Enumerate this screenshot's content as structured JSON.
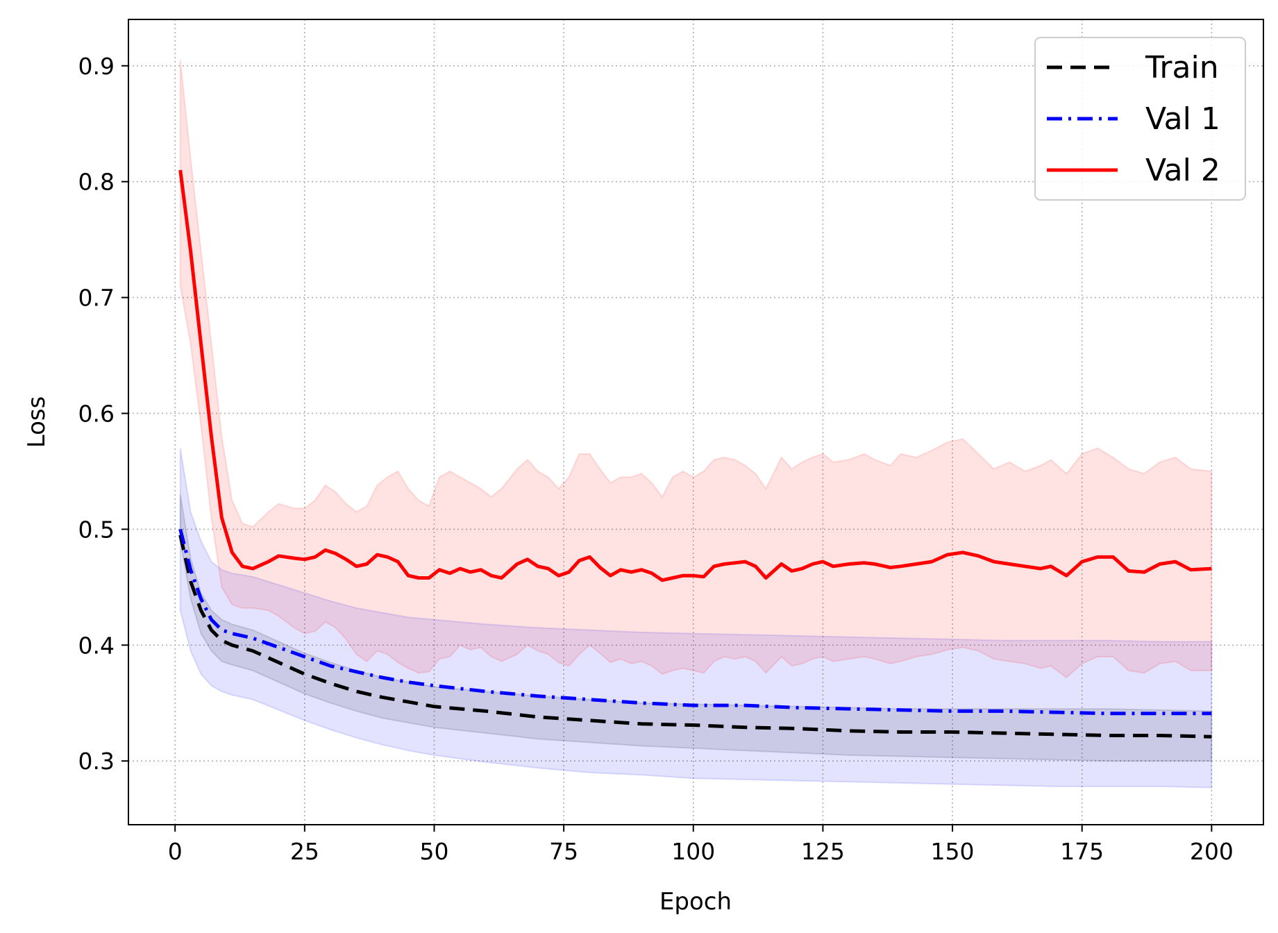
{
  "chart_data": {
    "type": "line",
    "title": "",
    "xlabel": "Epoch",
    "ylabel": "Loss",
    "xlim": [
      -9,
      210
    ],
    "ylim": [
      0.245,
      0.94
    ],
    "x_ticks": [
      0,
      25,
      50,
      75,
      100,
      125,
      150,
      175,
      200
    ],
    "y_ticks": [
      0.3,
      0.4,
      0.5,
      0.6,
      0.7,
      0.8,
      0.9
    ],
    "grid": true,
    "legend_position": "top-right",
    "series": [
      {
        "name": "Train",
        "color": "#000000",
        "style": "dashed",
        "band_color": "#000000",
        "x": [
          1,
          3,
          5,
          7,
          9,
          11,
          15,
          20,
          25,
          30,
          35,
          40,
          45,
          50,
          60,
          70,
          80,
          90,
          100,
          110,
          120,
          130,
          140,
          150,
          160,
          170,
          180,
          190,
          200
        ],
        "mean": [
          0.495,
          0.455,
          0.43,
          0.413,
          0.404,
          0.4,
          0.395,
          0.385,
          0.375,
          0.367,
          0.36,
          0.355,
          0.351,
          0.347,
          0.343,
          0.338,
          0.335,
          0.332,
          0.331,
          0.329,
          0.328,
          0.326,
          0.325,
          0.325,
          0.324,
          0.323,
          0.322,
          0.322,
          0.321
        ],
        "lower": [
          0.49,
          0.44,
          0.41,
          0.395,
          0.386,
          0.383,
          0.378,
          0.368,
          0.358,
          0.35,
          0.343,
          0.337,
          0.333,
          0.329,
          0.324,
          0.319,
          0.316,
          0.313,
          0.311,
          0.309,
          0.307,
          0.305,
          0.304,
          0.303,
          0.302,
          0.301,
          0.3,
          0.3,
          0.3
        ],
        "upper": [
          0.53,
          0.475,
          0.445,
          0.43,
          0.422,
          0.418,
          0.413,
          0.403,
          0.393,
          0.385,
          0.378,
          0.372,
          0.368,
          0.364,
          0.36,
          0.356,
          0.353,
          0.35,
          0.349,
          0.348,
          0.347,
          0.346,
          0.345,
          0.345,
          0.345,
          0.345,
          0.345,
          0.344,
          0.343
        ]
      },
      {
        "name": "Val 1",
        "color": "#0000ff",
        "style": "dashdot",
        "band_color": "#0000ff",
        "x": [
          1,
          3,
          5,
          7,
          9,
          11,
          15,
          20,
          25,
          30,
          35,
          40,
          45,
          50,
          60,
          70,
          80,
          90,
          100,
          110,
          120,
          130,
          140,
          150,
          160,
          170,
          180,
          190,
          200
        ],
        "mean": [
          0.5,
          0.465,
          0.44,
          0.422,
          0.413,
          0.41,
          0.406,
          0.398,
          0.39,
          0.382,
          0.377,
          0.372,
          0.368,
          0.365,
          0.36,
          0.356,
          0.353,
          0.35,
          0.348,
          0.348,
          0.346,
          0.345,
          0.344,
          0.343,
          0.343,
          0.342,
          0.341,
          0.341,
          0.341
        ],
        "lower": [
          0.43,
          0.395,
          0.375,
          0.365,
          0.36,
          0.357,
          0.353,
          0.344,
          0.335,
          0.327,
          0.32,
          0.314,
          0.309,
          0.305,
          0.299,
          0.294,
          0.29,
          0.288,
          0.285,
          0.284,
          0.283,
          0.282,
          0.281,
          0.28,
          0.279,
          0.278,
          0.278,
          0.278,
          0.277
        ],
        "upper": [
          0.57,
          0.515,
          0.49,
          0.472,
          0.465,
          0.462,
          0.459,
          0.452,
          0.445,
          0.438,
          0.432,
          0.428,
          0.424,
          0.422,
          0.418,
          0.415,
          0.413,
          0.411,
          0.41,
          0.409,
          0.408,
          0.407,
          0.406,
          0.405,
          0.404,
          0.404,
          0.404,
          0.403,
          0.403
        ]
      },
      {
        "name": "Val 2",
        "color": "#ff0000",
        "style": "solid",
        "band_color": "#ff0000",
        "x": [
          1,
          3,
          5,
          7,
          9,
          11,
          13,
          15,
          18,
          20,
          23,
          25,
          27,
          29,
          31,
          33,
          35,
          37,
          39,
          41,
          43,
          45,
          47,
          49,
          51,
          53,
          55,
          57,
          59,
          61,
          63,
          66,
          68,
          70,
          72,
          74,
          76,
          78,
          80,
          82,
          84,
          86,
          88,
          90,
          92,
          94,
          96,
          98,
          100,
          102,
          104,
          106,
          108,
          110,
          112,
          114,
          117,
          119,
          121,
          123,
          125,
          127,
          130,
          133,
          135,
          138,
          140,
          143,
          146,
          149,
          152,
          155,
          158,
          161,
          164,
          167,
          169,
          172,
          175,
          178,
          181,
          184,
          187,
          190,
          193,
          196,
          200
        ],
        "mean": [
          0.81,
          0.74,
          0.66,
          0.58,
          0.51,
          0.48,
          0.468,
          0.466,
          0.472,
          0.477,
          0.475,
          0.474,
          0.476,
          0.482,
          0.479,
          0.474,
          0.468,
          0.47,
          0.478,
          0.476,
          0.472,
          0.46,
          0.458,
          0.458,
          0.465,
          0.462,
          0.466,
          0.463,
          0.465,
          0.46,
          0.458,
          0.47,
          0.474,
          0.468,
          0.466,
          0.46,
          0.463,
          0.473,
          0.476,
          0.467,
          0.46,
          0.465,
          0.463,
          0.465,
          0.462,
          0.456,
          0.458,
          0.46,
          0.46,
          0.459,
          0.468,
          0.47,
          0.471,
          0.472,
          0.468,
          0.458,
          0.47,
          0.464,
          0.466,
          0.47,
          0.472,
          0.468,
          0.47,
          0.471,
          0.47,
          0.467,
          0.468,
          0.47,
          0.472,
          0.478,
          0.48,
          0.477,
          0.472,
          0.47,
          0.468,
          0.466,
          0.468,
          0.46,
          0.472,
          0.476,
          0.476,
          0.464,
          0.463,
          0.47,
          0.472,
          0.465,
          0.466
        ],
        "lower": [
          0.71,
          0.66,
          0.59,
          0.51,
          0.45,
          0.435,
          0.432,
          0.432,
          0.43,
          0.425,
          0.415,
          0.41,
          0.412,
          0.42,
          0.415,
          0.405,
          0.392,
          0.386,
          0.395,
          0.392,
          0.385,
          0.38,
          0.376,
          0.377,
          0.388,
          0.39,
          0.4,
          0.396,
          0.398,
          0.39,
          0.386,
          0.392,
          0.4,
          0.395,
          0.392,
          0.385,
          0.382,
          0.392,
          0.4,
          0.393,
          0.385,
          0.388,
          0.384,
          0.386,
          0.382,
          0.375,
          0.378,
          0.38,
          0.378,
          0.376,
          0.386,
          0.39,
          0.388,
          0.39,
          0.386,
          0.376,
          0.39,
          0.382,
          0.384,
          0.388,
          0.39,
          0.386,
          0.388,
          0.39,
          0.388,
          0.384,
          0.386,
          0.39,
          0.392,
          0.396,
          0.398,
          0.395,
          0.388,
          0.386,
          0.384,
          0.38,
          0.382,
          0.372,
          0.384,
          0.39,
          0.39,
          0.378,
          0.376,
          0.384,
          0.386,
          0.378,
          0.378
        ],
        "upper": [
          0.905,
          0.82,
          0.74,
          0.66,
          0.58,
          0.525,
          0.505,
          0.502,
          0.515,
          0.522,
          0.518,
          0.518,
          0.525,
          0.538,
          0.532,
          0.522,
          0.515,
          0.52,
          0.538,
          0.545,
          0.55,
          0.535,
          0.525,
          0.52,
          0.545,
          0.55,
          0.545,
          0.54,
          0.535,
          0.528,
          0.535,
          0.552,
          0.56,
          0.55,
          0.545,
          0.535,
          0.545,
          0.565,
          0.565,
          0.552,
          0.54,
          0.545,
          0.545,
          0.548,
          0.54,
          0.528,
          0.545,
          0.55,
          0.545,
          0.55,
          0.56,
          0.562,
          0.56,
          0.555,
          0.548,
          0.535,
          0.562,
          0.552,
          0.558,
          0.562,
          0.565,
          0.558,
          0.56,
          0.565,
          0.56,
          0.555,
          0.565,
          0.562,
          0.568,
          0.575,
          0.578,
          0.565,
          0.552,
          0.558,
          0.55,
          0.555,
          0.56,
          0.548,
          0.565,
          0.57,
          0.562,
          0.552,
          0.548,
          0.558,
          0.562,
          0.552,
          0.55
        ]
      }
    ]
  }
}
